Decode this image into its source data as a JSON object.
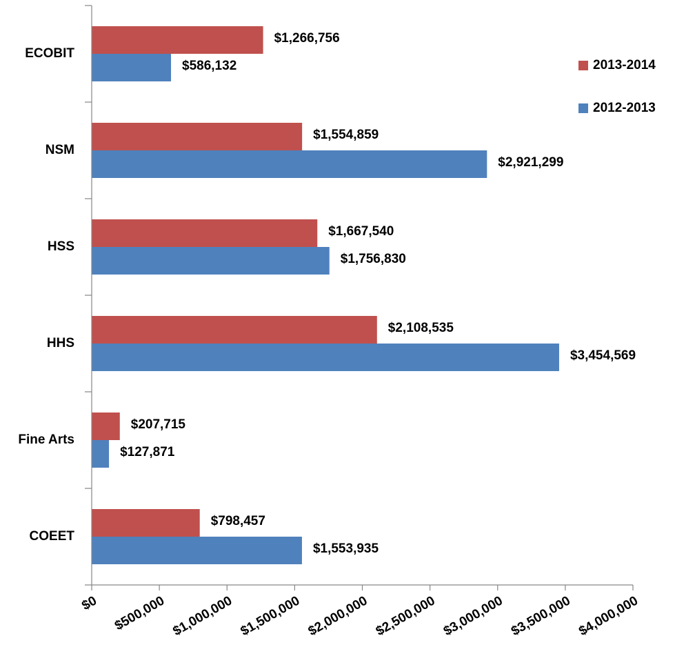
{
  "chart_data": {
    "type": "bar",
    "orientation": "horizontal",
    "categories": [
      "ECOBIT",
      "NSM",
      "HSS",
      "HHS",
      "Fine Arts",
      "COEET"
    ],
    "series": [
      {
        "name": "2013-2014",
        "color": "#c0504d",
        "values": [
          1266756,
          1554859,
          1667540,
          2108535,
          207715,
          798457
        ],
        "value_labels": [
          "$1,266,756",
          "$1,554,859",
          "$1,667,540",
          "$2,108,535",
          "$207,715",
          "$798,457"
        ]
      },
      {
        "name": "2012-2013",
        "color": "#4f81bd",
        "values": [
          586132,
          2921299,
          1756830,
          3454569,
          127871,
          1553935
        ],
        "value_labels": [
          "$586,132",
          "$2,921,299",
          "$1,756,830",
          "$3,454,569",
          "$127,871",
          "$1,553,935"
        ]
      }
    ],
    "xlim": [
      0,
      4000000
    ],
    "xticks": [
      {
        "value": 0,
        "label": "$0"
      },
      {
        "value": 500000,
        "label": "$500,000"
      },
      {
        "value": 1000000,
        "label": "$1,000,000"
      },
      {
        "value": 1500000,
        "label": "$1,500,000"
      },
      {
        "value": 2000000,
        "label": "$2,000,000"
      },
      {
        "value": 2500000,
        "label": "$2,500,000"
      },
      {
        "value": 3000000,
        "label": "$3,000,000"
      },
      {
        "value": 3500000,
        "label": "$3,500,000"
      },
      {
        "value": 4000000,
        "label": "$4,000,000"
      }
    ],
    "legend": "top-right"
  }
}
